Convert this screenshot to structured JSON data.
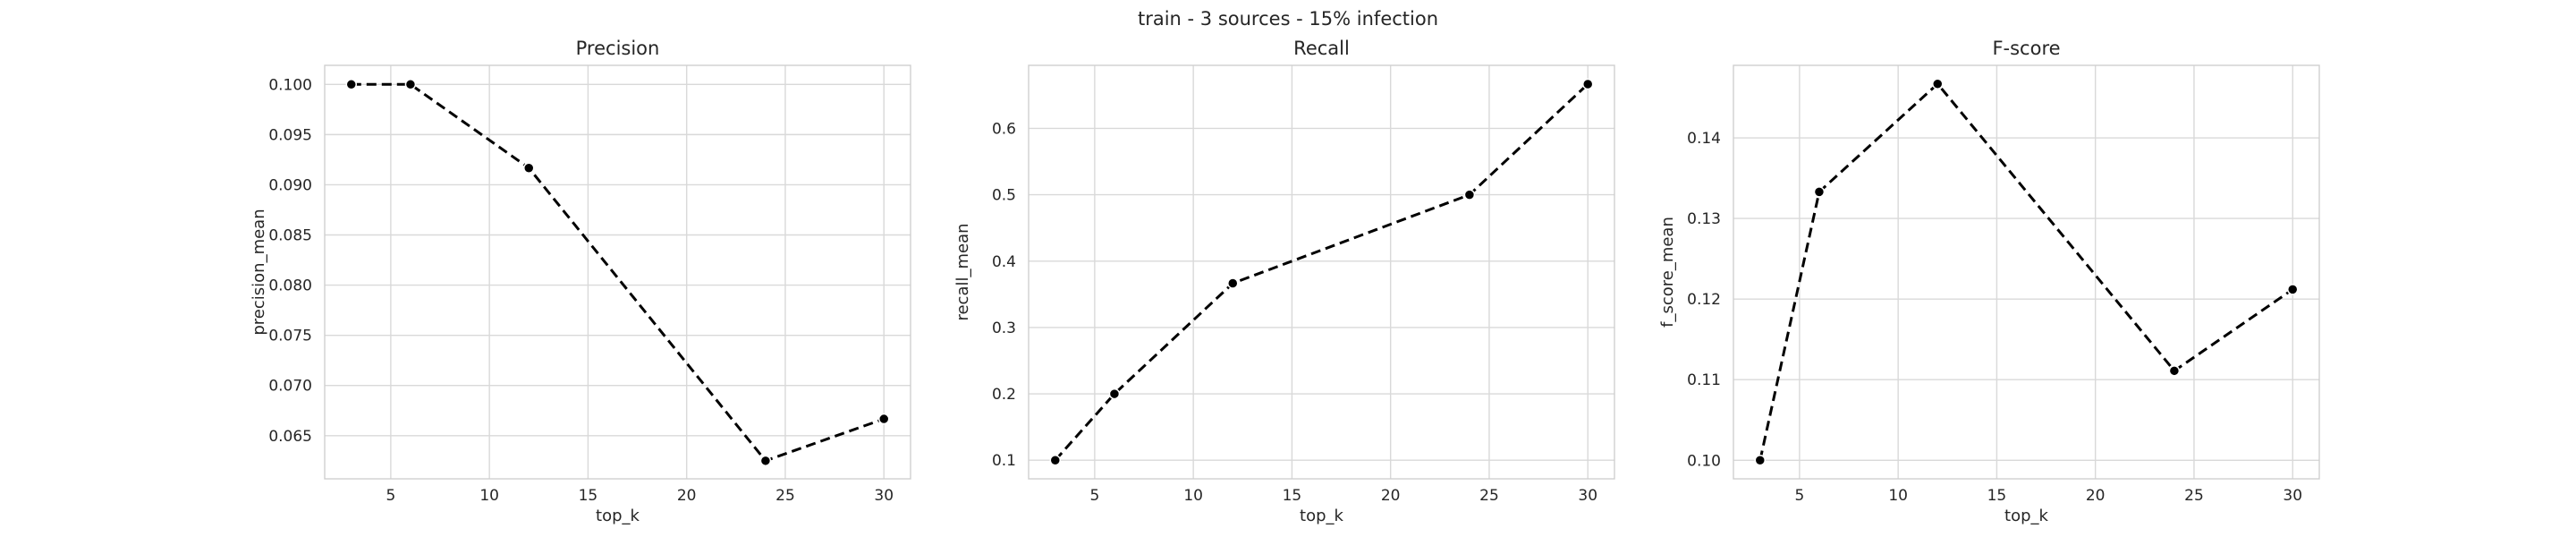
{
  "figure": {
    "suptitle": "train - 3 sources - 15% infection"
  },
  "chart_data": [
    {
      "type": "line",
      "title": "Precision",
      "xlabel": "top_k",
      "ylabel": "precision_mean",
      "x": [
        3,
        6,
        12,
        24,
        30
      ],
      "y": [
        0.1,
        0.1,
        0.09167,
        0.0625,
        0.06667
      ],
      "xlim": [
        1.65,
        31.35
      ],
      "ylim": [
        0.0607,
        0.1019
      ],
      "xticks": [
        5,
        10,
        15,
        20,
        25,
        30
      ],
      "yticks": [
        0.065,
        0.07,
        0.075,
        0.08,
        0.085,
        0.09,
        0.095,
        0.1
      ],
      "ytick_labels": [
        "0.065",
        "0.070",
        "0.075",
        "0.080",
        "0.085",
        "0.090",
        "0.095",
        "0.100"
      ],
      "grid": true,
      "line_style": "dashed",
      "color": "#000000"
    },
    {
      "type": "line",
      "title": "Recall",
      "xlabel": "top_k",
      "ylabel": "recall_mean",
      "x": [
        3,
        6,
        12,
        24,
        30
      ],
      "y": [
        0.1,
        0.2,
        0.3667,
        0.5,
        0.6667
      ],
      "xlim": [
        1.65,
        31.35
      ],
      "ylim": [
        0.072,
        0.695
      ],
      "xticks": [
        5,
        10,
        15,
        20,
        25,
        30
      ],
      "yticks": [
        0.1,
        0.2,
        0.3,
        0.4,
        0.5,
        0.6
      ],
      "ytick_labels": [
        "0.1",
        "0.2",
        "0.3",
        "0.4",
        "0.5",
        "0.6"
      ],
      "grid": true,
      "line_style": "dashed",
      "color": "#000000"
    },
    {
      "type": "line",
      "title": "F-score",
      "xlabel": "top_k",
      "ylabel": "f_score_mean",
      "x": [
        3,
        6,
        12,
        24,
        30
      ],
      "y": [
        0.1,
        0.1333,
        0.1467,
        0.1111,
        0.1212
      ],
      "xlim": [
        1.65,
        31.35
      ],
      "ylim": [
        0.0977,
        0.149
      ],
      "xticks": [
        5,
        10,
        15,
        20,
        25,
        30
      ],
      "yticks": [
        0.1,
        0.11,
        0.12,
        0.13,
        0.14
      ],
      "ytick_labels": [
        "0.10",
        "0.11",
        "0.12",
        "0.13",
        "0.14"
      ],
      "grid": true,
      "line_style": "dashed",
      "color": "#000000"
    }
  ]
}
